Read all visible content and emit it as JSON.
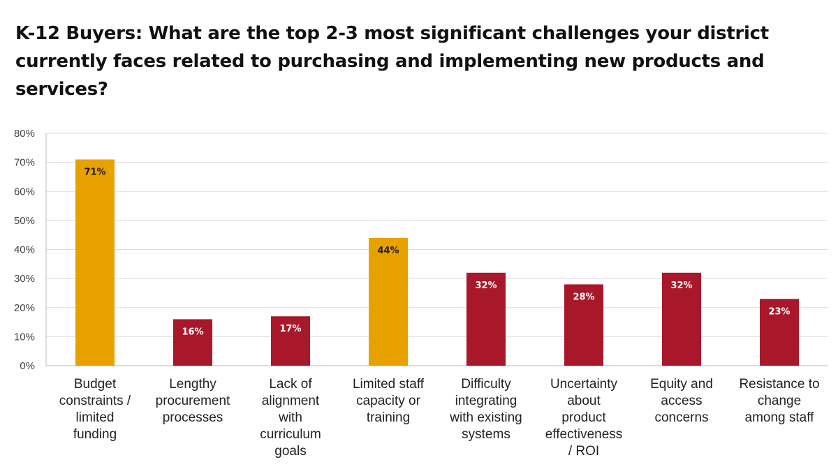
{
  "chart_data": {
    "type": "bar",
    "title": "K-12 Buyers: What are the top 2-3 most significant challenges your district currently faces related to purchasing and implementing new products and services?",
    "categories": [
      [
        "Budget",
        "constraints /",
        "limited",
        "funding"
      ],
      [
        "Lengthy",
        "procurement",
        "processes"
      ],
      [
        "Lack of",
        "alignment",
        "with",
        "curriculum",
        "goals"
      ],
      [
        "Limited staff",
        "capacity or",
        "training"
      ],
      [
        "Difficulty",
        "integrating",
        "with existing",
        "systems"
      ],
      [
        "Uncertainty",
        "about",
        "product",
        "effectiveness",
        "/ ROI"
      ],
      [
        "Equity and",
        "access",
        "concerns"
      ],
      [
        "Resistance to",
        "change",
        "among staff"
      ]
    ],
    "values": [
      71,
      16,
      17,
      44,
      32,
      28,
      32,
      23
    ],
    "data_labels": [
      "71%",
      "16%",
      "17%",
      "44%",
      "32%",
      "28%",
      "32%",
      "23%"
    ],
    "highlight": [
      true,
      false,
      false,
      true,
      false,
      false,
      false,
      false
    ],
    "ylim": [
      0,
      80
    ],
    "yticks": [
      "0%",
      "10%",
      "20%",
      "30%",
      "40%",
      "50%",
      "60%",
      "70%",
      "80%"
    ],
    "grid": true,
    "legend": "none",
    "colors": {
      "highlight": "#E8A200",
      "default": "#A8182A",
      "highlight_label": "#1a1a1a",
      "default_label": "#ffffff",
      "grid": "#dddddd"
    }
  }
}
